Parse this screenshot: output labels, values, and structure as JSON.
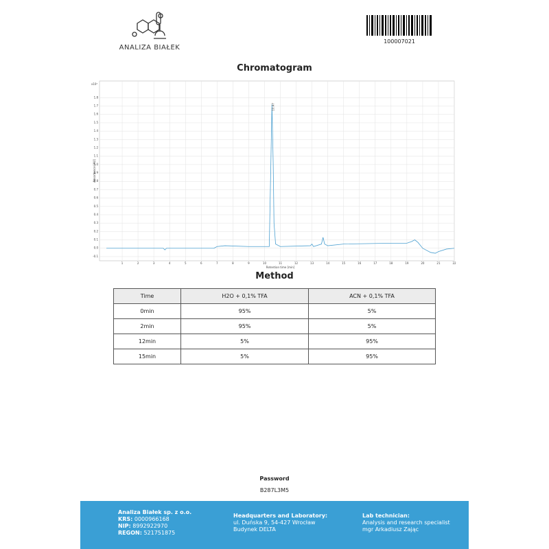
{
  "header": {
    "company": "ANALIZA BIAŁEK",
    "barcode": "100007021"
  },
  "chromatogram": {
    "type": "line",
    "title": "Chromatogram",
    "x_label": "Retention time [min]",
    "y_label": "Absorbance [AU]",
    "y_scale_label": "x10³",
    "peak_label": "10.47",
    "x": [
      0,
      1,
      2,
      3,
      3.6,
      3.7,
      3.8,
      4.5,
      6.8,
      7,
      7.5,
      9,
      10.3,
      10.4,
      10.47,
      10.55,
      10.6,
      10.7,
      11,
      12.9,
      13,
      13.1,
      13.6,
      13.7,
      13.8,
      14,
      15,
      18,
      19,
      19.3,
      19.5,
      19.7,
      20,
      20.5,
      20.8,
      21,
      21.5,
      22
    ],
    "values": [
      0,
      0,
      0,
      0,
      0,
      -0.02,
      0,
      0,
      0,
      0.02,
      0.03,
      0.02,
      0.02,
      1.0,
      1.72,
      1.0,
      0.3,
      0.05,
      0.02,
      0.03,
      0.05,
      0.02,
      0.05,
      0.13,
      0.05,
      0.03,
      0.05,
      0.06,
      0.06,
      0.08,
      0.1,
      0.07,
      0,
      -0.05,
      -0.06,
      -0.04,
      -0.01,
      0
    ],
    "color": "#4a9fd0",
    "xlim": [
      0,
      22
    ],
    "ylim": [
      -0.15,
      2.0
    ],
    "xticks": [
      1,
      2,
      3,
      4,
      5,
      6,
      7,
      8,
      9,
      10,
      11,
      12,
      13,
      14,
      15,
      16,
      17,
      18,
      19,
      20,
      21,
      22
    ],
    "yticks": [
      -0.1,
      {
        "value": 0,
        "label": "0.0"
      },
      0.1,
      0.2,
      0.3,
      0.4,
      0.5,
      0.6,
      0.7,
      0.8,
      0.9,
      {
        "value": 1,
        "label": "1.0"
      },
      1.1,
      1.2,
      1.3,
      1.4,
      1.5,
      1.6,
      1.7,
      1.8
    ],
    "grid": true
  },
  "method": {
    "title": "Method",
    "table": {
      "header": [
        "Time",
        "H2O + 0,1% TFA",
        "ACN + 0,1% TFA"
      ],
      "rows": [
        [
          "0min",
          "95%",
          "5%"
        ],
        [
          "2min",
          "95%",
          "5%"
        ],
        [
          "12min",
          "5%",
          "95%"
        ],
        [
          "15min",
          "5%",
          "95%"
        ]
      ]
    }
  },
  "password": {
    "label": "Password",
    "value": "B287L3M5"
  },
  "footer": {
    "company": {
      "name": "Analiza Białek sp. z o.o.",
      "lines": [
        [
          "KRS:",
          "0000966168"
        ],
        [
          "NIP:",
          "8992922970"
        ],
        [
          "REGON:",
          "521751875"
        ]
      ]
    },
    "headquarters": {
      "title": "Headquarters and Laboratory:",
      "lines": [
        "ul. Duńska 9, 54-427 Wrocław",
        "Budynek DELTA"
      ]
    },
    "technician": {
      "title": "Lab technician:",
      "lines": [
        "Analysis and research specialist",
        "mgr Arkadiusz Zając"
      ]
    }
  }
}
